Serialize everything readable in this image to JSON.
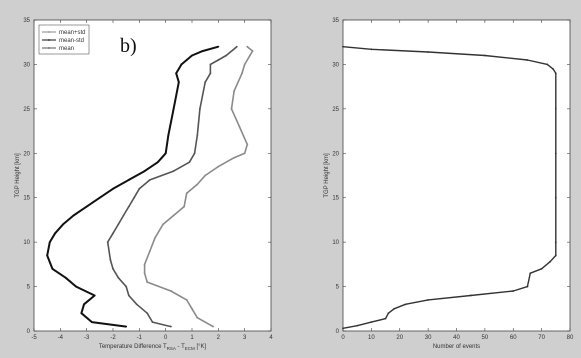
{
  "chart_data": [
    {
      "type": "line",
      "panel_tag": "b)",
      "xlabel_parts": {
        "main": "Temperature Difference T",
        "sub1": "RSA",
        "mid": " - T",
        "sub2": "ECM",
        "end": " [°K]"
      },
      "ylabel": "TGP Height [km]",
      "xlim": [
        -5,
        4
      ],
      "ylim": [
        0,
        35
      ],
      "xticks": [
        -5,
        -4,
        -3,
        -2,
        -1,
        0,
        1,
        2,
        3,
        4
      ],
      "yticks": [
        0,
        5,
        10,
        15,
        20,
        25,
        30,
        35
      ],
      "grid": false,
      "legend": {
        "placement": "top-left",
        "entries": [
          "mean+std",
          "mean-std",
          "mean"
        ]
      },
      "series": [
        {
          "name": "mean-std",
          "color": "#111111",
          "x": [
            -1.5,
            -2.8,
            -3.2,
            -3.1,
            -2.7,
            -3.4,
            -3.8,
            -4.3,
            -4.5,
            -4.4,
            -4.2,
            -3.9,
            -3.5,
            -3.0,
            -2.5,
            -2.0,
            -1.4,
            -0.8,
            -0.3,
            0.0,
            0.1,
            0.3,
            0.5,
            0.4,
            0.6,
            0.8,
            1.0,
            1.4,
            2.0
          ],
          "y": [
            0.5,
            1.0,
            2.0,
            3.0,
            4.0,
            5.0,
            6.0,
            7.0,
            8.5,
            10.0,
            11.0,
            12.0,
            13.0,
            14.0,
            15.0,
            16.0,
            17.0,
            18.0,
            19.0,
            20.0,
            22.0,
            25.0,
            28.0,
            29.0,
            30.0,
            30.5,
            31.0,
            31.5,
            32.0
          ]
        },
        {
          "name": "mean",
          "color": "#555555",
          "x": [
            0.2,
            -0.5,
            -0.7,
            -1.1,
            -1.4,
            -1.5,
            -1.8,
            -2.0,
            -2.1,
            -2.2,
            -2.0,
            -1.8,
            -1.6,
            -1.4,
            -1.2,
            -1.0,
            -0.6,
            0.3,
            0.9,
            1.1,
            1.2,
            1.3,
            1.5,
            1.7,
            1.7,
            2.0,
            2.3,
            2.7
          ],
          "y": [
            0.5,
            1.0,
            2.0,
            3.0,
            4.0,
            5.0,
            6.0,
            7.0,
            8.0,
            10.0,
            11.0,
            12.0,
            13.0,
            14.0,
            15.0,
            16.0,
            17.0,
            18.0,
            19.0,
            20.0,
            22.0,
            25.0,
            28.0,
            29.0,
            30.0,
            30.5,
            31.0,
            32.0
          ]
        },
        {
          "name": "mean+std",
          "color": "#8a8a8a",
          "x": [
            1.8,
            1.2,
            1.0,
            0.8,
            0.2,
            -0.7,
            -0.8,
            -0.8,
            -0.6,
            -0.4,
            -0.1,
            0.3,
            0.7,
            0.8,
            1.2,
            1.5,
            2.0,
            2.6,
            3.0,
            3.1,
            2.8,
            2.5,
            2.6,
            2.9,
            3.0,
            3.2,
            3.3,
            3.1
          ],
          "y": [
            0.5,
            1.5,
            2.5,
            3.5,
            4.5,
            5.5,
            6.5,
            7.5,
            9.0,
            10.5,
            12.0,
            13.0,
            14.0,
            15.5,
            16.5,
            17.5,
            18.5,
            19.5,
            20.0,
            21.0,
            23.0,
            25.0,
            27.0,
            29.0,
            30.0,
            31.0,
            31.5,
            32.0
          ]
        }
      ]
    },
    {
      "type": "line",
      "xlabel": "Number of events",
      "ylabel": "TGP Height [km]",
      "xlim": [
        0,
        80
      ],
      "ylim": [
        0,
        35
      ],
      "xticks": [
        0,
        10,
        20,
        30,
        40,
        50,
        60,
        70,
        80
      ],
      "yticks": [
        0,
        5,
        10,
        15,
        20,
        25,
        30,
        35
      ],
      "grid": false,
      "series": [
        {
          "color": "#333333",
          "x": [
            0,
            5,
            10,
            15,
            16,
            18,
            22,
            30,
            45,
            60,
            65,
            66,
            70,
            73,
            75,
            75,
            75,
            75,
            75,
            75,
            74,
            72,
            65,
            50,
            30,
            10,
            0
          ],
          "y": [
            0.3,
            0.6,
            1.0,
            1.4,
            2.0,
            2.5,
            3.0,
            3.5,
            4.0,
            4.5,
            5.0,
            6.5,
            7.0,
            7.8,
            8.5,
            10.0,
            15.0,
            20.0,
            25.0,
            29.0,
            29.5,
            30.0,
            30.5,
            31.0,
            31.4,
            31.7,
            32.0
          ]
        }
      ]
    }
  ]
}
